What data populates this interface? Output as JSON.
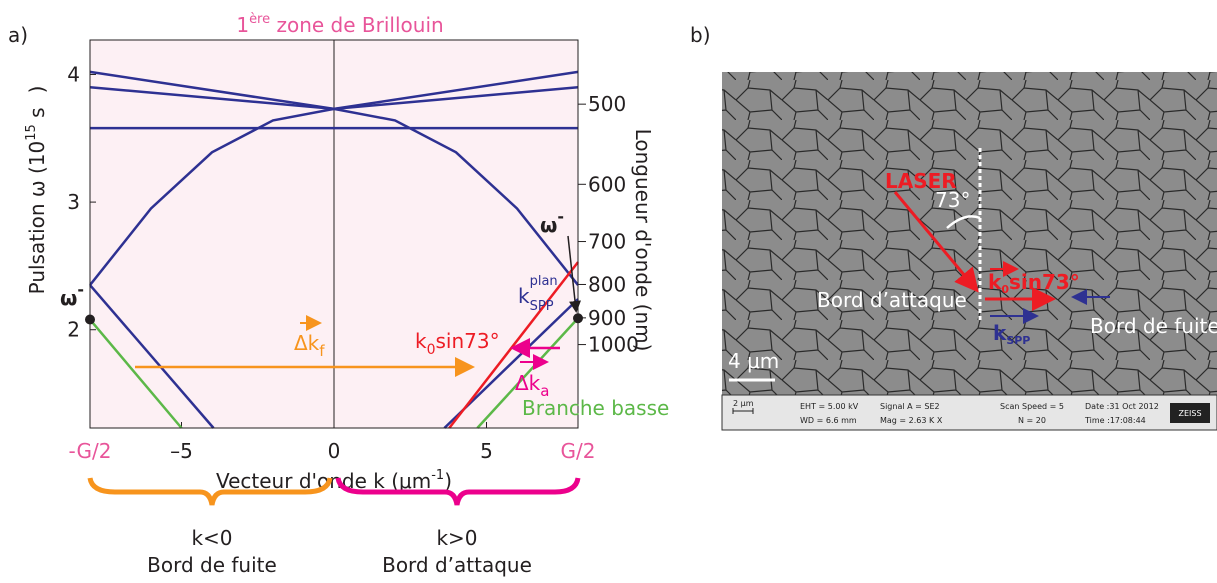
{
  "panel_labels": [
    "a)",
    "b)"
  ],
  "chart_data": {
    "type": "line",
    "title": [
      "1",
      "ère",
      " zone de Brillouin"
    ],
    "x_label": [
      "Vecteur d'onde k (μm",
      "-1",
      ")"
    ],
    "y_label": [
      "Pulsation ω (10",
      "15",
      " s",
      ")"
    ],
    "y2_label": "Longueur d'onde (nm)",
    "xlim": [
      -8,
      8
    ],
    "xticks": [
      {
        "value": -8,
        "label": "-G/2"
      },
      {
        "value": -5,
        "label": "–5"
      },
      0,
      5,
      {
        "value": 8,
        "label": "G/2"
      }
    ],
    "ylim": [
      1.23,
      4.27
    ],
    "yticks": [
      2,
      3,
      4
    ],
    "y2scale": "reciprocal",
    "y2ticks": [
      500,
      600,
      700,
      800,
      900,
      1000
    ],
    "zeroline": true,
    "series": [
      {
        "color": "#2e3192",
        "x": [
          -8,
          0,
          8
        ],
        "values": [
          4.02,
          3.73,
          4.02
        ]
      },
      {
        "color": "#2e3192",
        "x": [
          -8,
          0,
          8
        ],
        "values": [
          3.9,
          3.73,
          3.9
        ]
      },
      {
        "color": "#2e3192",
        "x": [
          -8,
          8
        ],
        "values": [
          3.58,
          3.58
        ]
      },
      {
        "color": "#2e3192",
        "x": [
          -8,
          -6,
          -4,
          -2,
          0,
          2,
          4,
          6,
          8
        ],
        "values": [
          2.35,
          2.95,
          3.39,
          3.64,
          3.73,
          3.64,
          3.39,
          2.95,
          2.35
        ]
      },
      {
        "color": "#2e3192",
        "x": [
          -8,
          -3.95
        ],
        "values": [
          2.35,
          1.23
        ]
      },
      {
        "color": "#2e3192",
        "x": [
          3.62,
          8
        ],
        "values": [
          1.23,
          2.24
        ]
      },
      {
        "color": "#ed1c24",
        "x": [
          3.78,
          8
        ],
        "values": [
          1.23,
          2.53
        ]
      },
      {
        "color": "#5cb848",
        "x": [
          -8,
          -5
        ],
        "values": [
          2.08,
          1.23
        ]
      },
      {
        "color": "#5cb848",
        "x": [
          4.7,
          8
        ],
        "values": [
          1.23,
          2.09
        ]
      }
    ],
    "points": {
      "color": "#231f20",
      "x": [
        -8,
        8
      ],
      "values": [
        2.08,
        2.09
      ]
    },
    "annotations": {
      "omega_left": [
        "ω",
        "-"
      ],
      "omega_right": [
        "ω",
        "-"
      ],
      "kspp": [
        "k",
        "plan",
        "SPP"
      ],
      "dkf": [
        "Δk",
        "f"
      ],
      "k0sin": [
        "k",
        "0",
        "sin73°"
      ],
      "dka": [
        "Δk",
        "a"
      ],
      "branche": "Branche basse"
    }
  },
  "zones": [
    [
      "k<0",
      "Bord de fuite"
    ],
    [
      "k>0",
      "Bord d’attaque"
    ]
  ],
  "sem": {
    "laser": "LASER",
    "angle": "73°",
    "k0sin": [
      "k",
      "0",
      "sin73°"
    ],
    "attaque": "Bord d’attaque",
    "fuite": "Bord de fuite",
    "kspp": [
      "k",
      "SPP"
    ],
    "scale": "4 μm",
    "info": [
      "2 μm",
      "EHT = 5.00 kV",
      "WD = 6.6 mm",
      "Signal A = SE2",
      "Mag =  2.63 K X",
      "Scan Speed = 5",
      "N = 20",
      "Date :31 Oct 2012",
      "Time :17:08:44",
      "ZEISS"
    ]
  }
}
